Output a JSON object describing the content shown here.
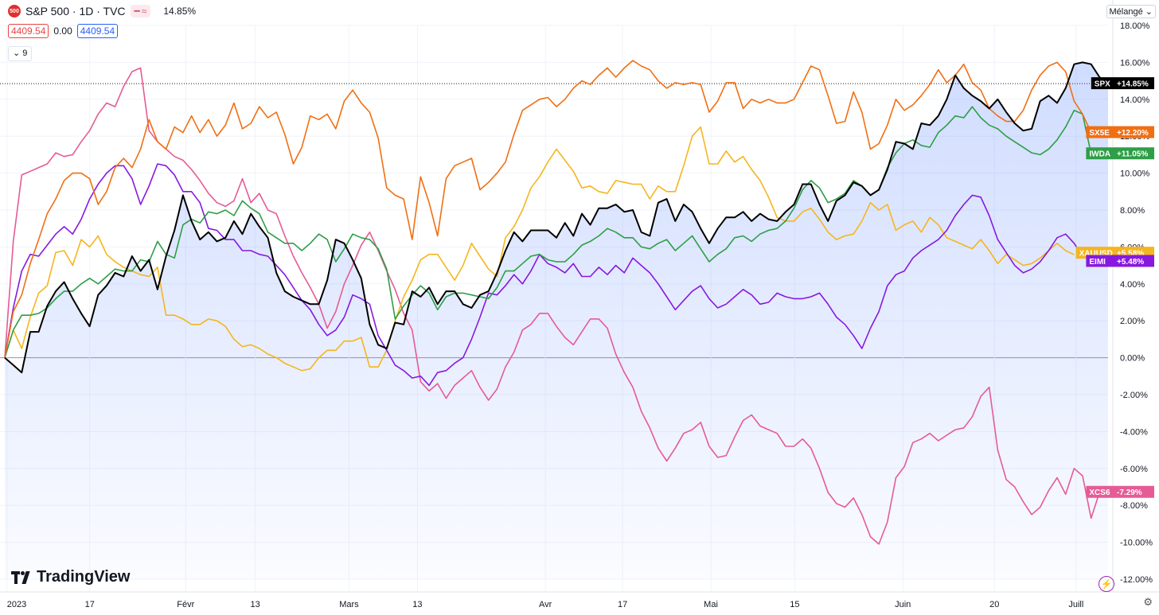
{
  "header": {
    "logo_text": "500",
    "symbol_title": "S&P 500 · 1D · TVC",
    "change_text": "14.85%",
    "price_bid": "4409.54",
    "price_spread": "0.00",
    "price_ask": "4409.54",
    "indicator_count": "9"
  },
  "scale_mode": "Mélangé",
  "brand": "TradingView",
  "colors": {
    "SPX": "#000000",
    "SX5E": "#f06f13",
    "IWDA": "#2e9e47",
    "XAUUSD": "#f5b51e",
    "EIMI": "#8719df",
    "XCS6": "#e55b95",
    "area_fill": "#2962ff"
  },
  "chart_data": {
    "type": "line",
    "y_unit": "%",
    "ylim": [
      -12,
      18
    ],
    "y_ticks": [
      "18.00%",
      "16.00%",
      "14.00%",
      "12.00%",
      "10.00%",
      "8.00%",
      "6.00%",
      "4.00%",
      "2.00%",
      "0.00%",
      "-2.00%",
      "-4.00%",
      "-6.00%",
      "-8.00%",
      "-10.00%",
      "-12.00%"
    ],
    "x_ticks": [
      "2023",
      "17",
      "Févr",
      "13",
      "Mars",
      "13",
      "Avr",
      "17",
      "Mai",
      "15",
      "Juin",
      "20",
      "Juill"
    ],
    "current_marker_pct": 14.85,
    "series": [
      {
        "name": "SPX",
        "label": "+14.85%",
        "last": 14.85,
        "values": [
          0,
          -0.4,
          -0.8,
          1.4,
          1.4,
          2.8,
          3.6,
          4.1,
          3.2,
          2.4,
          1.7,
          3.4,
          3.9,
          4.6,
          4.4,
          5.5,
          4.7,
          5.3,
          3.7,
          5.5,
          6.9,
          8.8,
          7.4,
          6.4,
          6.8,
          6.3,
          6.5,
          7.4,
          6.7,
          7.8,
          7.1,
          6.5,
          4.6,
          3.6,
          3.3,
          3.1,
          2.9,
          2.9,
          4.2,
          6.4,
          6.2,
          5.3,
          4.3,
          1.8,
          0.7,
          0.5,
          1.9,
          1.8,
          3.6,
          3.3,
          3.8,
          2.9,
          3.6,
          3.6,
          2.9,
          2.7,
          3.4,
          3.6,
          4.6,
          5.8,
          6.8,
          6.3,
          6.9,
          6.9,
          6.9,
          6.5,
          7.3,
          6.6,
          7.8,
          7.2,
          8.1,
          8.1,
          8.3,
          7.9,
          8.0,
          6.8,
          6.6,
          8.4,
          8.6,
          7.4,
          8.3,
          7.9,
          7.0,
          6.2,
          7.0,
          7.6,
          7.6,
          7.9,
          7.4,
          7.8,
          7.5,
          7.4,
          7.9,
          8.3,
          9.4,
          9.4,
          8.3,
          7.4,
          8.5,
          8.8,
          9.5,
          9.3,
          8.8,
          9.1,
          10.2,
          11.7,
          11.6,
          11.3,
          12.7,
          12.6,
          13.1,
          14.0,
          15.3,
          14.6,
          14.2,
          13.9,
          13.5,
          14.0,
          13.3,
          12.7,
          12.3,
          12.4,
          13.9,
          14.2,
          13.8,
          14.6,
          15.9,
          16.0,
          15.9,
          15.2,
          14.85
        ]
      },
      {
        "name": "SX5E",
        "label": "+12.20%",
        "last": 12.2,
        "values": [
          0,
          2.5,
          3.4,
          5.1,
          6.4,
          7.8,
          8.6,
          9.6,
          10.0,
          10.0,
          9.7,
          8.3,
          9.0,
          10.3,
          10.8,
          10.3,
          11.3,
          12.9,
          11.7,
          11.3,
          12.5,
          12.2,
          13.1,
          12.2,
          12.9,
          12.0,
          12.6,
          13.8,
          12.4,
          12.7,
          13.6,
          13.0,
          13.3,
          12.1,
          10.5,
          11.4,
          13.1,
          12.9,
          13.2,
          12.4,
          13.9,
          14.5,
          13.8,
          13.3,
          11.9,
          9.2,
          8.8,
          8.6,
          6.4,
          9.8,
          8.4,
          6.6,
          9.7,
          10.4,
          10.6,
          10.8,
          9.1,
          9.5,
          10.0,
          10.6,
          12.1,
          13.4,
          13.7,
          14.0,
          14.1,
          13.6,
          14.0,
          14.6,
          15.0,
          14.8,
          15.3,
          15.7,
          15.2,
          15.7,
          16.1,
          15.8,
          15.6,
          15.0,
          14.6,
          14.9,
          14.8,
          14.9,
          14.8,
          13.3,
          13.9,
          14.9,
          14.9,
          13.5,
          14.0,
          13.8,
          14.0,
          13.8,
          13.8,
          14.0,
          14.9,
          15.8,
          15.6,
          14.2,
          12.7,
          12.8,
          14.4,
          13.3,
          11.3,
          11.6,
          12.6,
          14.0,
          13.4,
          13.7,
          14.2,
          14.8,
          15.6,
          14.9,
          15.3,
          15.9,
          14.9,
          14.5,
          13.5,
          13.1,
          12.8,
          12.8,
          13.4,
          14.5,
          15.3,
          15.8,
          16.0,
          15.5,
          13.9,
          13.2,
          12.2
        ]
      },
      {
        "name": "IWDA",
        "label": "+11.05%",
        "last": 11.05,
        "values": [
          0,
          1.5,
          2.3,
          2.3,
          2.4,
          2.7,
          3.2,
          3.6,
          3.6,
          4.0,
          4.3,
          4.0,
          4.4,
          4.8,
          4.7,
          4.7,
          5.3,
          5.2,
          6.3,
          5.6,
          5.4,
          7.2,
          7.5,
          7.3,
          7.9,
          7.8,
          8.0,
          7.7,
          8.5,
          8.1,
          7.8,
          6.8,
          6.5,
          6.2,
          6.2,
          5.8,
          6.2,
          6.7,
          6.4,
          5.2,
          5.9,
          6.7,
          6.5,
          6.4,
          5.9,
          4.8,
          2.1,
          2.8,
          3.4,
          3.9,
          3.5,
          2.6,
          3.3,
          3.5,
          3.5,
          3.4,
          3.3,
          3.2,
          3.8,
          4.7,
          4.7,
          5.1,
          5.5,
          5.6,
          5.3,
          5.2,
          5.2,
          5.6,
          6.1,
          6.3,
          6.6,
          7.0,
          6.8,
          6.5,
          6.5,
          6.0,
          5.9,
          6.2,
          6.4,
          5.8,
          6.2,
          6.6,
          5.9,
          5.2,
          5.6,
          5.9,
          6.5,
          6.6,
          6.3,
          6.7,
          6.9,
          7.0,
          7.4,
          8.1,
          9.1,
          9.6,
          9.2,
          8.4,
          8.6,
          8.9,
          9.6,
          9.3,
          8.8,
          9.1,
          10.3,
          11.1,
          11.6,
          11.8,
          11.5,
          11.4,
          12.2,
          12.6,
          13.1,
          13.0,
          13.6,
          13.0,
          12.6,
          12.4,
          12.0,
          11.7,
          11.4,
          11.1,
          11.0,
          11.3,
          11.8,
          12.5,
          13.4,
          13.2,
          11.05
        ]
      },
      {
        "name": "XAUUSD",
        "label": "+5.58%",
        "last": 5.58,
        "values": [
          0,
          1.5,
          0.5,
          2.2,
          3.5,
          3.9,
          5.7,
          5.8,
          5.0,
          6.4,
          6.0,
          6.6,
          5.6,
          5.2,
          4.9,
          4.7,
          4.5,
          4.4,
          4.9,
          2.3,
          2.3,
          2.1,
          1.8,
          1.8,
          2.1,
          2.0,
          1.7,
          1.0,
          0.6,
          0.7,
          0.5,
          0.2,
          0.0,
          -0.3,
          -0.5,
          -0.7,
          -0.6,
          0.0,
          0.4,
          0.4,
          0.9,
          0.9,
          1.1,
          -0.5,
          -0.5,
          0.4,
          2.0,
          3.3,
          4.2,
          5.3,
          5.6,
          5.6,
          4.9,
          4.2,
          5.0,
          6.2,
          5.5,
          4.8,
          4.4,
          6.5,
          7.1,
          8.0,
          9.2,
          9.8,
          10.6,
          11.3,
          10.7,
          10.1,
          9.2,
          9.3,
          9.0,
          8.9,
          9.6,
          9.5,
          9.4,
          9.4,
          8.6,
          9.3,
          9.0,
          9.0,
          10.4,
          12.0,
          12.5,
          10.5,
          10.5,
          11.2,
          10.6,
          10.9,
          10.2,
          9.6,
          8.7,
          7.6,
          7.4,
          7.4,
          7.9,
          8.1,
          7.5,
          6.8,
          6.4,
          6.6,
          6.7,
          7.4,
          8.4,
          8.0,
          8.3,
          6.9,
          7.2,
          7.4,
          6.8,
          7.6,
          7.2,
          6.5,
          6.3,
          6.1,
          5.9,
          6.4,
          5.8,
          5.1,
          5.6,
          5.3,
          5.0,
          5.1,
          5.4,
          5.8,
          6.2,
          5.8,
          5.58
        ]
      },
      {
        "name": "EIMI",
        "label": "+5.48%",
        "last": 5.48,
        "values": [
          0,
          2.7,
          4.7,
          5.6,
          5.5,
          6.1,
          6.7,
          7.1,
          6.7,
          7.5,
          8.6,
          9.4,
          10.0,
          10.4,
          10.4,
          9.7,
          8.3,
          9.3,
          10.5,
          10.4,
          9.9,
          9.0,
          9.0,
          8.4,
          7.0,
          6.9,
          6.4,
          6.4,
          5.8,
          5.8,
          5.6,
          5.5,
          5.0,
          4.5,
          3.8,
          3.1,
          2.6,
          1.8,
          1.2,
          1.5,
          2.2,
          3.4,
          3.2,
          2.9,
          1.2,
          0.4,
          -0.4,
          -0.7,
          -1.1,
          -1.0,
          -1.5,
          -0.8,
          -0.7,
          -0.3,
          0.0,
          1.0,
          2.2,
          3.5,
          3.4,
          3.9,
          4.5,
          4.0,
          4.7,
          5.6,
          5.1,
          4.9,
          4.6,
          5.1,
          4.4,
          4.4,
          4.9,
          4.5,
          5.0,
          4.6,
          5.4,
          5.0,
          4.6,
          4.0,
          3.3,
          2.6,
          3.1,
          3.6,
          3.9,
          3.2,
          2.7,
          2.9,
          3.3,
          3.7,
          3.4,
          2.9,
          3.0,
          3.5,
          3.3,
          3.2,
          3.2,
          3.3,
          3.5,
          2.9,
          2.2,
          1.8,
          1.2,
          0.5,
          1.6,
          2.5,
          3.9,
          4.5,
          4.7,
          5.4,
          5.8,
          6.1,
          6.4,
          6.9,
          7.7,
          8.3,
          8.8,
          8.7,
          7.7,
          6.4,
          5.7,
          5.0,
          4.6,
          4.8,
          5.2,
          5.8,
          6.5,
          6.7,
          6.2,
          5.48
        ]
      },
      {
        "name": "XCS6",
        "label": "-7.29%",
        "last": -7.29,
        "values": [
          0,
          6.3,
          9.9,
          10.1,
          10.3,
          10.5,
          11.1,
          10.9,
          11.0,
          11.7,
          12.3,
          13.2,
          13.8,
          13.6,
          14.7,
          15.5,
          15.7,
          12.3,
          11.7,
          11.3,
          10.9,
          10.7,
          10.2,
          9.6,
          8.9,
          8.4,
          8.2,
          8.5,
          9.7,
          8.4,
          8.9,
          8.0,
          7.8,
          6.6,
          5.5,
          4.6,
          3.8,
          2.9,
          1.6,
          2.5,
          4.0,
          5.0,
          6.1,
          6.8,
          5.8,
          4.7,
          3.7,
          2.4,
          1.5,
          -1.3,
          -1.8,
          -1.4,
          -2.2,
          -1.5,
          -1.1,
          -0.7,
          -1.6,
          -2.3,
          -1.7,
          -0.5,
          0.3,
          1.5,
          1.8,
          2.4,
          2.4,
          1.7,
          1.1,
          0.7,
          1.4,
          2.1,
          2.1,
          1.6,
          0.2,
          -0.8,
          -1.6,
          -2.9,
          -3.8,
          -4.9,
          -5.6,
          -4.9,
          -4.1,
          -3.9,
          -3.5,
          -4.8,
          -5.4,
          -5.3,
          -4.3,
          -3.4,
          -3.1,
          -3.7,
          -3.9,
          -4.1,
          -4.8,
          -4.8,
          -4.4,
          -4.9,
          -6.0,
          -7.3,
          -7.9,
          -8.1,
          -7.6,
          -8.5,
          -9.7,
          -10.1,
          -8.9,
          -6.5,
          -5.9,
          -4.6,
          -4.4,
          -4.1,
          -4.5,
          -4.2,
          -3.9,
          -3.8,
          -3.2,
          -2.1,
          -1.6,
          -5.0,
          -6.6,
          -7.0,
          -7.8,
          -8.5,
          -8.1,
          -7.2,
          -6.5,
          -7.4,
          -6.0,
          -6.4,
          -8.7,
          -7.29
        ]
      }
    ]
  }
}
